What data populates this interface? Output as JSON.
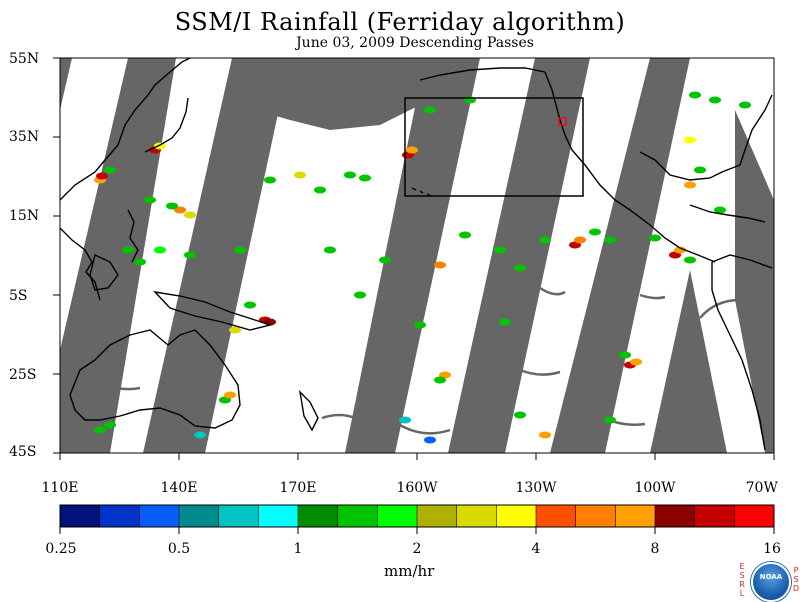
{
  "title": "SSM/I Rainfall (Ferriday algorithm)",
  "subtitle": "June 03, 2009  Descending Passes",
  "lat_labels": [
    "55N",
    "35N",
    "15N",
    "5S",
    "25S",
    "45S"
  ],
  "lon_labels": [
    "110E",
    "140E",
    "170E",
    "160W",
    "130W",
    "100W",
    "70W"
  ],
  "lat_range": [
    -45,
    55
  ],
  "lon_range_east_deg": [
    110,
    290
  ],
  "map_colors": {
    "swath_gap": "#666666",
    "coast": "#000000",
    "background": "#ffffff"
  },
  "colorbar": {
    "tick_labels": [
      "0.25",
      "0.5",
      "1",
      "2",
      "4",
      "8",
      "16"
    ],
    "units": "mm/hr",
    "colors": [
      "#00137a",
      "#0035c8",
      "#0a5cff",
      "#008c8c",
      "#00c4c4",
      "#00ffff",
      "#008c00",
      "#00c400",
      "#00ff00",
      "#b0b000",
      "#dada00",
      "#ffff00",
      "#ff5000",
      "#ff8000",
      "#ffa000",
      "#8c0000",
      "#c40000",
      "#ff0000"
    ]
  },
  "logo": {
    "left_text": "ESRL",
    "right_text": "PSD",
    "center_text": "NOAA"
  }
}
